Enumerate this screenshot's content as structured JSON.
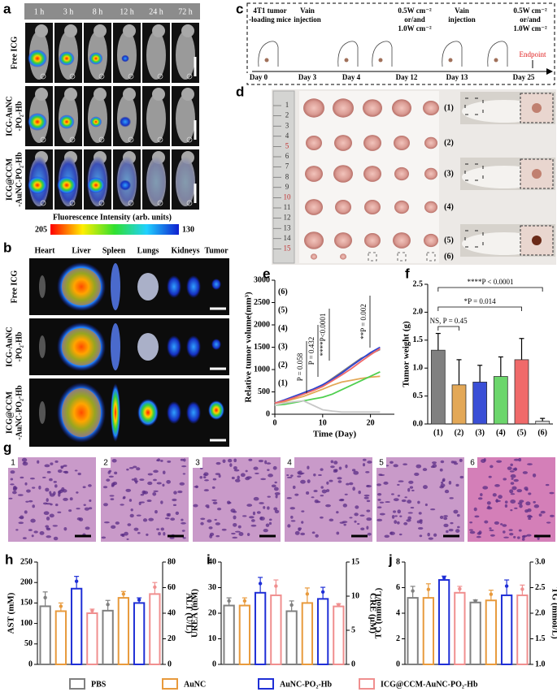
{
  "panels": {
    "a": {
      "label": "a",
      "times": [
        "1 h",
        "3 h",
        "8 h",
        "12 h",
        "24 h",
        "72 h"
      ],
      "rows": [
        [
          "Free ICG"
        ],
        [
          "ICG-AuNC",
          "-PO₂-Hb"
        ],
        [
          "ICG@CCM",
          "-AuNC-PO₂-Hb"
        ]
      ],
      "colorbar_title": "Fluorescence Intensity (arb. units)",
      "colorbar_range": [
        205,
        130
      ]
    },
    "b": {
      "label": "b",
      "organs": [
        "Heart",
        "Liver",
        "Spleen",
        "Lungs",
        "Kidneys",
        "Tumor"
      ],
      "rows": [
        [
          "Free ICG"
        ],
        [
          "ICG-AuNC",
          "-PO₂-Hb"
        ],
        [
          "ICG@CCM",
          "-AuNC-PO₂-Hb"
        ]
      ]
    },
    "c": {
      "label": "c",
      "events": [
        [
          "4T1 tumor",
          "-loading mice"
        ],
        [
          "Vain",
          "injection"
        ],
        [
          "0.5W cm⁻²",
          "or/and",
          "1.0W cm⁻²"
        ],
        [
          "Vain",
          "injection"
        ],
        [
          "0.5W cm⁻²",
          "or/and",
          "1.0W cm⁻²"
        ],
        [
          "Endpoint"
        ]
      ],
      "days": [
        "Day 0",
        "Day 3",
        "Day 4",
        "Day 12",
        "Day 13",
        "Day 25"
      ]
    },
    "d": {
      "label": "d",
      "groups": [
        "(1)",
        "(2)",
        "(3)",
        "(4)",
        "(5)",
        "(6)"
      ],
      "ruler": [
        1,
        2,
        3,
        4,
        5,
        6,
        7,
        8,
        9,
        10,
        11,
        12,
        13,
        14,
        15
      ]
    },
    "g": {
      "label": "g",
      "images": [
        1,
        2,
        3,
        4,
        5,
        6
      ]
    }
  },
  "chart_data": [
    {
      "type": "line",
      "label": "e",
      "xlabel": "Time (Day)",
      "ylabel": "Relative tumor volume(mm³)",
      "x": [
        0,
        2,
        4,
        6,
        8,
        10,
        12,
        14,
        16,
        18,
        20,
        22
      ],
      "xlim": [
        0,
        25
      ],
      "xticks": [
        0,
        10,
        20
      ],
      "ylim": [
        0,
        3000
      ],
      "yticks": [
        0,
        500,
        1000,
        1500,
        2000,
        2500,
        3000
      ],
      "series": [
        {
          "name": "(1)",
          "color": "#7f7f7f",
          "values": [
            250,
            300,
            380,
            480,
            560,
            650,
            800,
            950,
            1100,
            1250,
            1350,
            1450
          ]
        },
        {
          "name": "(2)",
          "color": "#e3a857",
          "values": [
            250,
            280,
            340,
            400,
            480,
            560,
            650,
            720,
            760,
            800,
            830,
            850
          ]
        },
        {
          "name": "(3)",
          "color": "#2f44d0",
          "values": [
            250,
            320,
            400,
            480,
            560,
            660,
            780,
            920,
            1080,
            1230,
            1380,
            1500
          ]
        },
        {
          "name": "(4)",
          "color": "#4fcf4f",
          "values": [
            200,
            220,
            260,
            300,
            340,
            380,
            450,
            550,
            650,
            750,
            850,
            950
          ]
        },
        {
          "name": "(5)",
          "color": "#f06a6a",
          "values": [
            250,
            300,
            370,
            450,
            530,
            620,
            750,
            880,
            1020,
            1180,
            1330,
            1470
          ]
        },
        {
          "name": "(6)",
          "color": "#c8c8c8",
          "values": [
            200,
            250,
            280,
            300,
            200,
            100,
            70,
            50,
            50,
            50,
            50,
            50
          ]
        }
      ],
      "annotations": [
        "P = 0.058",
        "P = 0.432",
        "****P<0.0001",
        "**P = 0.002"
      ]
    },
    {
      "type": "bar",
      "label": "f",
      "ylabel": "Tumor weight (g)",
      "categories": [
        "(1)",
        "(2)",
        "(3)",
        "(4)",
        "(5)",
        "(6)"
      ],
      "values": [
        1.32,
        0.7,
        0.75,
        0.85,
        1.15,
        0.05
      ],
      "errors": [
        0.3,
        0.45,
        0.3,
        0.35,
        0.38,
        0.05
      ],
      "colors": [
        "#808080",
        "#e3a857",
        "#3a4fd6",
        "#6cd66c",
        "#f06a6a",
        "#d9d9d9"
      ],
      "ylim": [
        0,
        2.5
      ],
      "yticks": [
        {
          "value": 0,
          "label": "0.0"
        },
        0.5,
        {
          "value": 1,
          "label": "1.0"
        },
        1.5,
        {
          "value": 2,
          "label": "2.0"
        },
        2.5
      ],
      "annotations": [
        "****P < 0.0001",
        "*P = 0.014",
        "NS, P = 0.45"
      ]
    },
    {
      "type": "bar",
      "label": "h",
      "ylabel": "AST (mM)",
      "y2label": "ALT (U/L)",
      "ylim": [
        0,
        250
      ],
      "yticks": [
        0,
        50,
        100,
        150,
        200,
        250
      ],
      "y2lim": [
        0,
        80
      ],
      "y2ticks": [
        0,
        20,
        40,
        60,
        80
      ],
      "series": [
        {
          "values": [
            142,
            130,
            185,
            125
          ],
          "errors": [
            35,
            20,
            30,
            10
          ]
        },
        {
          "values": [
            42,
            52,
            48,
            55
          ],
          "errors": [
            8,
            5,
            4,
            9
          ],
          "axis": "y2"
        }
      ]
    },
    {
      "type": "bar",
      "label": "i",
      "ylabel": "UREA (mM)",
      "y2label": "CRE (μM)",
      "ylim": [
        0,
        40
      ],
      "yticks": [
        0,
        10,
        20,
        30,
        40
      ],
      "y2lim": [
        0,
        15
      ],
      "y2ticks": [
        0,
        5,
        10,
        15
      ],
      "series": [
        {
          "values": [
            23,
            23,
            28,
            27
          ],
          "errors": [
            3,
            3,
            6,
            6
          ]
        },
        {
          "values": [
            7.8,
            9,
            9.6,
            8.5
          ],
          "errors": [
            1.5,
            2.2,
            1.7,
            0.4
          ],
          "axis": "y2"
        }
      ]
    },
    {
      "type": "bar",
      "label": "j",
      "ylabel": "TC (mmol/L)",
      "y2label": "TG (mmol/L)",
      "ylim": [
        0,
        8
      ],
      "yticks": [
        0,
        2,
        4,
        6,
        8
      ],
      "y2lim": [
        1,
        3
      ],
      "y2ticks": [
        {
          "value": 1,
          "label": "1.0"
        },
        1.5,
        {
          "value": 2,
          "label": "2.0"
        },
        2.5,
        {
          "value": 3,
          "label": "3.0"
        }
      ],
      "series": [
        {
          "values": [
            5.2,
            5.2,
            6.6,
            5.6
          ],
          "errors": [
            0.9,
            1.1,
            0.3,
            0.5
          ]
        },
        {
          "values": [
            2.21,
            2.25,
            2.35,
            2.35
          ],
          "errors": [
            0.05,
            0.2,
            0.3,
            0.2
          ],
          "axis": "y2"
        }
      ]
    }
  ],
  "legend": [
    {
      "name": "PBS",
      "color": "#808080"
    },
    {
      "name": "AuNC",
      "color": "#e89a3c"
    },
    {
      "name": "AuNC-PO₂-Hb",
      "color": "#1f2fd6"
    },
    {
      "name": "ICG@CCM-AuNC-PO₂-Hb",
      "color": "#f08f8f"
    }
  ]
}
